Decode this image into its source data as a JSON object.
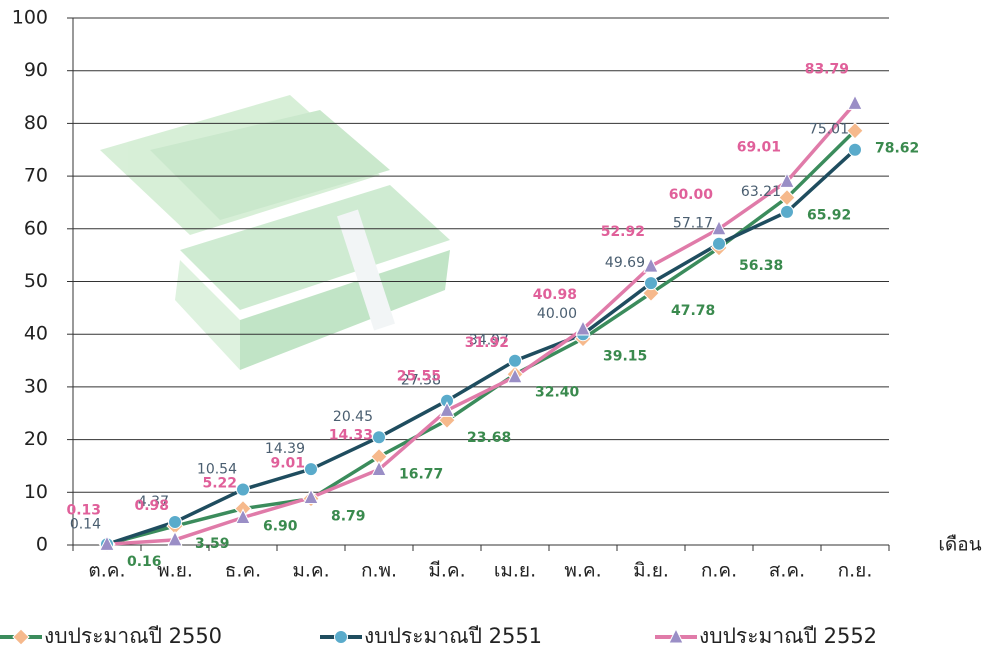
{
  "chart_data": {
    "type": "line",
    "x_label": "เดือน",
    "categories": [
      "ต.ค.",
      "พ.ย.",
      "ธ.ค.",
      "ม.ค.",
      "ก.พ.",
      "มี.ค.",
      "เม.ย.",
      "พ.ค.",
      "มิ.ย.",
      "ก.ค.",
      "ส.ค.",
      "ก.ย."
    ],
    "ylim": [
      0,
      100
    ],
    "yticks": [
      0,
      10,
      20,
      30,
      40,
      50,
      60,
      70,
      80,
      90,
      100
    ],
    "grid": true,
    "legend": "bottom",
    "series": [
      {
        "name": "งบประมาณปี 2550",
        "color": "#3b8c5c",
        "marker": "diamond",
        "marker_color": "#f6b98c",
        "label_color": "#3a8a4e",
        "values": [
          0.16,
          3.59,
          6.9,
          8.79,
          16.77,
          23.68,
          32.4,
          39.15,
          47.78,
          56.38,
          65.92,
          78.62
        ],
        "value_labels": [
          "0.16",
          "3.59",
          "6.90",
          "8.79",
          "16.77",
          "23.68",
          "32.40",
          "39.15",
          "47.78",
          "56.38",
          "65.92",
          "78.62"
        ]
      },
      {
        "name": "งบประมาณปี 2551",
        "color": "#1f4d5f",
        "marker": "circle",
        "marker_color": "#5aabcb",
        "label_color": "#4a5e70",
        "values": [
          0.14,
          4.37,
          10.54,
          14.39,
          20.45,
          27.38,
          34.97,
          40.0,
          49.69,
          57.17,
          63.21,
          75.01
        ],
        "value_labels": [
          "0.14",
          "4.37",
          "10.54",
          "14.39",
          "20.45",
          "27.38",
          "34.97",
          "40.00",
          "49.69",
          "57.17",
          "63.21",
          "75.01"
        ]
      },
      {
        "name": "งบประมาณปี 2552",
        "color": "#e07ba9",
        "marker": "triangle",
        "marker_color": "#9a8ec6",
        "label_color": "#e0609a",
        "values": [
          0.13,
          0.98,
          5.22,
          9.01,
          14.33,
          25.55,
          31.92,
          40.98,
          52.92,
          60.0,
          69.01,
          83.79
        ],
        "value_labels": [
          "0.13",
          "0.98",
          "5.22",
          "9.01",
          "14.33",
          "25.55",
          "31.92",
          "40.98",
          "52.92",
          "60.00",
          "69.01",
          "83.79"
        ]
      }
    ]
  }
}
